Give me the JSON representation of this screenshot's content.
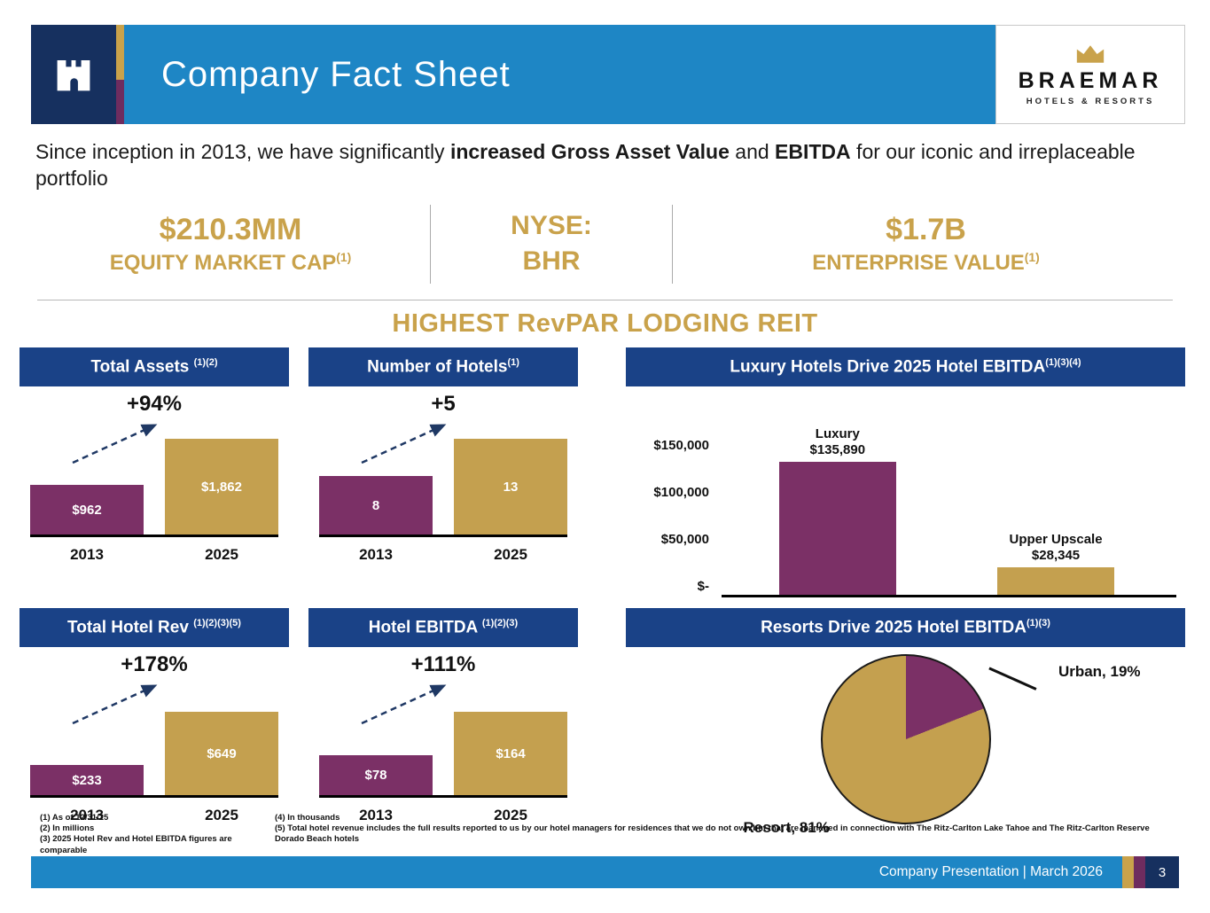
{
  "header": {
    "title": "Company Fact Sheet",
    "brand": {
      "name": "BRAEMAR",
      "tagline": "HOTELS & RESORTS"
    }
  },
  "intro": {
    "part1": "Since inception in 2013, we have significantly ",
    "bold1": "increased Gross Asset Value",
    "part2": " and ",
    "bold2": "EBITDA",
    "part3": " for our iconic and irreplaceable portfolio"
  },
  "stats": {
    "equity": {
      "value": "$210.3MM",
      "label": "EQUITY MARKET CAP",
      "sup": "(1)"
    },
    "nyse": {
      "line1": "NYSE:",
      "line2": "BHR"
    },
    "enterprise": {
      "value": "$1.7B",
      "label": "ENTERPRISE VALUE",
      "sup": "(1)"
    }
  },
  "section_title": "HIGHEST RevPAR LODGING REIT",
  "colors": {
    "series": [
      "#7B3066",
      "#C4A04F"
    ],
    "header_blue": "#1E86C5",
    "title_bar_blue": "#1A4287",
    "navy": "#16305F",
    "gold_text": "#C9A24B",
    "purple_stripe": "#6E2C5F"
  },
  "chart_data": [
    {
      "type": "bar",
      "title": "Total Assets ",
      "sup": "(1)(2)",
      "annotation": "+94%",
      "categories": [
        "2013",
        "2025"
      ],
      "values": [
        962,
        1862
      ],
      "value_labels": [
        "$962",
        "$1,862"
      ]
    },
    {
      "type": "bar",
      "title": "Number of Hotels",
      "sup": "(1)",
      "annotation": "+5",
      "categories": [
        "2013",
        "2025"
      ],
      "values": [
        8,
        13
      ],
      "value_labels": [
        "8",
        "13"
      ]
    },
    {
      "type": "bar",
      "title": "Luxury Hotels Drive 2025 Hotel EBITDA",
      "sup": "(1)(3)(4)",
      "categories": [
        "Luxury",
        "Upper Upscale"
      ],
      "values": [
        135890,
        28345
      ],
      "value_labels": [
        "$135,890",
        "$28,345"
      ],
      "y_ticks": [
        "$150,000",
        "$100,000",
        "$50,000",
        "$-"
      ],
      "ylim": [
        0,
        150000
      ]
    },
    {
      "type": "bar",
      "title": "Total Hotel Rev ",
      "sup": "(1)(2)(3)(5)",
      "annotation": "+178%",
      "categories": [
        "2013",
        "2025"
      ],
      "values": [
        233,
        649
      ],
      "value_labels": [
        "$233",
        "$649"
      ]
    },
    {
      "type": "bar",
      "title": "Hotel EBITDA ",
      "sup": "(1)(2)(3)",
      "annotation": "+111%",
      "categories": [
        "2013",
        "2025"
      ],
      "values": [
        78,
        164
      ],
      "value_labels": [
        "$78",
        "$164"
      ]
    },
    {
      "type": "pie",
      "title": "Resorts Drive 2025 Hotel EBITDA",
      "sup": "(1)(3)",
      "slices": [
        {
          "name": "Urban",
          "pct": 19,
          "label": "Urban, 19%",
          "color": "#7B3066"
        },
        {
          "name": "Resort",
          "pct": 81,
          "label": "Resort, 81%",
          "color": "#C4A04F"
        }
      ]
    }
  ],
  "footnotes": {
    "col1": [
      "(1) As of 12/31/25",
      "(2) In millions",
      "(3) 2025 Hotel Rev and Hotel EBITDA figures are comparable"
    ],
    "col2": [
      "(4) In thousands",
      "(5) Total hotel revenue includes the full results reported to us by our hotel managers for residences that we do not own but that are managed in connection with The Ritz-Carlton Lake Tahoe and The Ritz-Carlton Reserve Dorado Beach hotels"
    ]
  },
  "footer": {
    "text": "Company Presentation | March 2026",
    "page": "3"
  }
}
